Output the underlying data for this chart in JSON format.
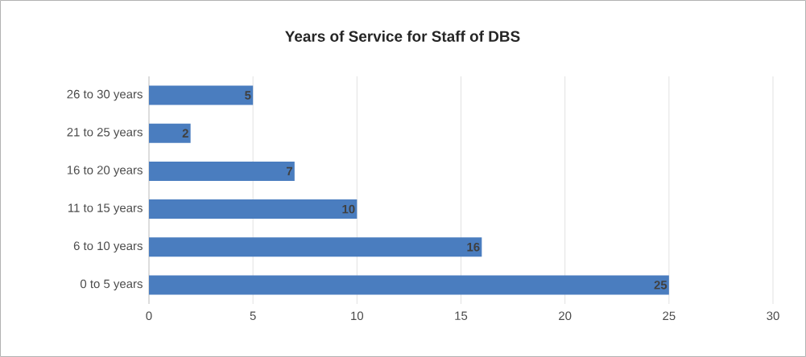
{
  "chart_data": {
    "type": "bar",
    "orientation": "horizontal",
    "title": "Years of Service for Staff of DBS",
    "categories": [
      "26 to 30 years",
      "21 to 25 years",
      "16 to 20 years",
      "11 to 15 years",
      "6 to 10 years",
      "0 to 5 years"
    ],
    "values": [
      5,
      2,
      7,
      10,
      16,
      25
    ],
    "color": "#4a7dbf",
    "xlim": [
      0,
      30
    ],
    "xticks": [
      0,
      5,
      10,
      15,
      20,
      25,
      30
    ],
    "grid": "x",
    "data_labels": true
  }
}
